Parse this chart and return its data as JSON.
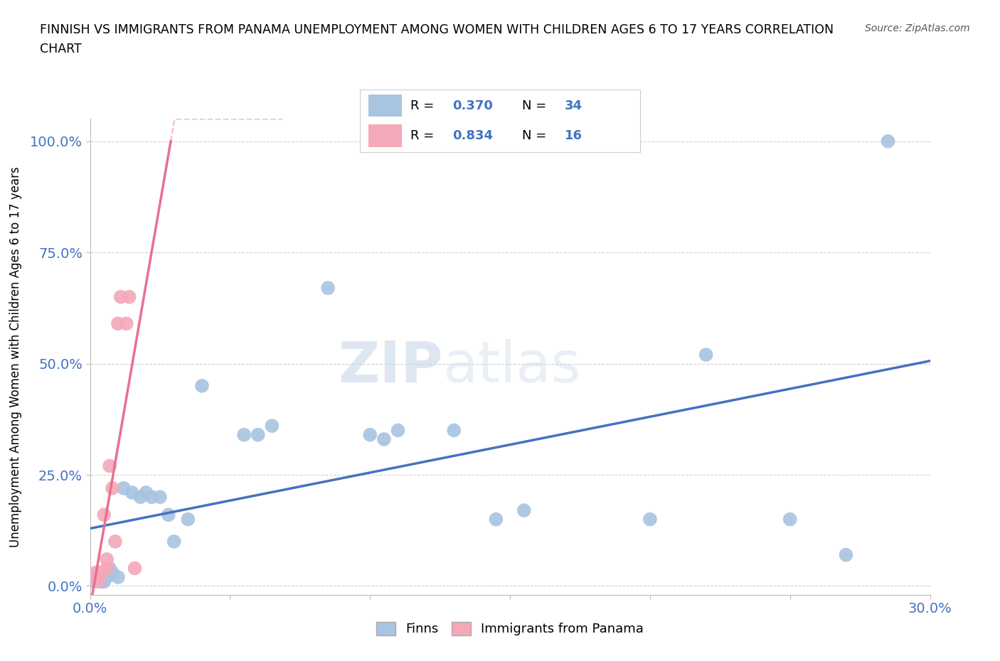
{
  "title_line1": "FINNISH VS IMMIGRANTS FROM PANAMA UNEMPLOYMENT AMONG WOMEN WITH CHILDREN AGES 6 TO 17 YEARS CORRELATION",
  "title_line2": "CHART",
  "source": "Source: ZipAtlas.com",
  "ylabel": "Unemployment Among Women with Children Ages 6 to 17 years",
  "xlim": [
    0.0,
    0.3
  ],
  "ylim": [
    -0.02,
    1.05
  ],
  "xticks": [
    0.0,
    0.05,
    0.1,
    0.15,
    0.2,
    0.25,
    0.3
  ],
  "xticklabels": [
    "0.0%",
    "",
    "",
    "",
    "",
    "",
    "30.0%"
  ],
  "yticks": [
    0.0,
    0.25,
    0.5,
    0.75,
    1.0
  ],
  "yticklabels": [
    "0.0%",
    "25.0%",
    "50.0%",
    "75.0%",
    "100.0%"
  ],
  "finns_x": [
    0.001,
    0.002,
    0.003,
    0.004,
    0.005,
    0.006,
    0.007,
    0.008,
    0.01,
    0.012,
    0.015,
    0.018,
    0.02,
    0.022,
    0.025,
    0.028,
    0.03,
    0.035,
    0.04,
    0.055,
    0.06,
    0.065,
    0.085,
    0.1,
    0.105,
    0.11,
    0.13,
    0.145,
    0.155,
    0.2,
    0.22,
    0.25,
    0.27,
    0.285
  ],
  "finns_y": [
    0.01,
    0.02,
    0.02,
    0.01,
    0.01,
    0.02,
    0.04,
    0.03,
    0.02,
    0.22,
    0.21,
    0.2,
    0.21,
    0.2,
    0.2,
    0.16,
    0.1,
    0.15,
    0.45,
    0.34,
    0.34,
    0.36,
    0.67,
    0.34,
    0.33,
    0.35,
    0.35,
    0.15,
    0.17,
    0.15,
    0.52,
    0.15,
    0.07,
    1.0
  ],
  "panama_x": [
    0.001,
    0.002,
    0.003,
    0.003,
    0.004,
    0.005,
    0.006,
    0.006,
    0.007,
    0.008,
    0.009,
    0.01,
    0.011,
    0.013,
    0.014,
    0.016
  ],
  "panama_y": [
    0.02,
    0.03,
    0.01,
    0.03,
    0.03,
    0.16,
    0.04,
    0.06,
    0.27,
    0.22,
    0.1,
    0.59,
    0.65,
    0.59,
    0.65,
    0.04
  ],
  "finns_color": "#a8c4e0",
  "panama_color": "#f4a8b8",
  "finns_line_color": "#4472c4",
  "panama_line_color": "#e87090",
  "legend_R_finns": "0.370",
  "legend_N_finns": "34",
  "legend_R_panama": "0.834",
  "legend_N_panama": "16",
  "watermark_zip": "ZIP",
  "watermark_atlas": "atlas",
  "background_color": "#ffffff",
  "grid_color": "#d0d0d0"
}
